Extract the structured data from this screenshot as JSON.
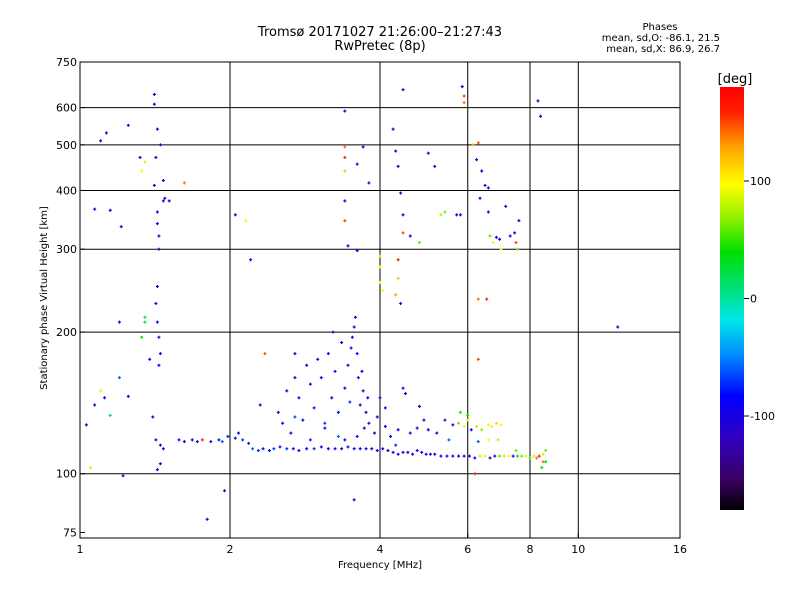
{
  "title": {
    "line1": "Tromsø 20171027 21:26:00–21:27:43",
    "line2": "RwPretec (8p)"
  },
  "phase_stats": {
    "heading": "Phases",
    "o_line": "mean, sd,O: -86.1, 21.5",
    "x_line": "mean, sd,X:  86.9, 26.7"
  },
  "colorbar": {
    "label": "[deg]",
    "range": [
      -180,
      180
    ],
    "ticks": [
      {
        "v": 100,
        "label": "100"
      },
      {
        "v": 0,
        "label": "0"
      },
      {
        "v": -100,
        "label": "-100"
      }
    ]
  },
  "chart_data": {
    "type": "scatter",
    "xlabel": "Frequency [MHz]",
    "ylabel": "Stationary phase Virtual Height [km]",
    "xscale": "log",
    "yscale": "log",
    "xlim": [
      1,
      16
    ],
    "ylim": [
      73,
      750
    ],
    "xticks": [
      {
        "v": 1,
        "label": "1"
      },
      {
        "v": 2,
        "label": "2"
      },
      {
        "v": 4,
        "label": "4"
      },
      {
        "v": 6,
        "label": "6"
      },
      {
        "v": 8,
        "label": "8"
      },
      {
        "v": 10,
        "label": "10"
      },
      {
        "v": 16,
        "label": "16"
      }
    ],
    "yticks": [
      {
        "v": 75,
        "label": "75"
      },
      {
        "v": 100,
        "label": "100"
      },
      {
        "v": 200,
        "label": "200"
      },
      {
        "v": 300,
        "label": "300"
      },
      {
        "v": 400,
        "label": "400"
      },
      {
        "v": 500,
        "label": "500"
      },
      {
        "v": 600,
        "label": "600"
      },
      {
        "v": 750,
        "label": "750"
      }
    ],
    "grid": true,
    "color_by": "phase_deg",
    "points": [
      [
        1.03,
        127,
        -95
      ],
      [
        1.05,
        103,
        110
      ],
      [
        1.07,
        140,
        -110
      ],
      [
        1.1,
        150,
        105
      ],
      [
        1.12,
        145,
        -100
      ],
      [
        1.15,
        133,
        20
      ],
      [
        1.2,
        160,
        -60
      ],
      [
        1.22,
        99,
        -110
      ],
      [
        1.25,
        146,
        -90
      ],
      [
        1.33,
        195,
        40
      ],
      [
        1.35,
        210,
        20
      ],
      [
        1.4,
        132,
        -90
      ],
      [
        1.42,
        118,
        -100
      ],
      [
        1.45,
        115,
        -95
      ],
      [
        1.43,
        102,
        -95
      ],
      [
        1.45,
        105,
        -90
      ],
      [
        1.47,
        113,
        -90
      ],
      [
        1.38,
        175,
        -80
      ],
      [
        1.07,
        365,
        -95
      ],
      [
        1.15,
        363,
        -95
      ],
      [
        1.21,
        335,
        -100
      ],
      [
        1.1,
        510,
        -95
      ],
      [
        1.13,
        530,
        -95
      ],
      [
        1.25,
        550,
        -95
      ],
      [
        1.32,
        470,
        -90
      ],
      [
        1.35,
        460,
        110
      ],
      [
        1.33,
        440,
        100
      ],
      [
        1.41,
        410,
        -95
      ],
      [
        1.43,
        360,
        -100
      ],
      [
        1.43,
        340,
        -95
      ],
      [
        1.44,
        320,
        -100
      ],
      [
        1.44,
        300,
        -100
      ],
      [
        1.43,
        250,
        -100
      ],
      [
        1.42,
        230,
        -95
      ],
      [
        1.43,
        210,
        -100
      ],
      [
        1.44,
        195,
        -100
      ],
      [
        1.45,
        180,
        -95
      ],
      [
        1.44,
        170,
        -90
      ],
      [
        1.47,
        380,
        -95
      ],
      [
        1.45,
        500,
        -95
      ],
      [
        1.42,
        470,
        -100
      ],
      [
        1.41,
        640,
        -95
      ],
      [
        1.41,
        610,
        -100
      ],
      [
        1.43,
        540,
        -95
      ],
      [
        1.47,
        420,
        -95
      ],
      [
        1.48,
        385,
        -100
      ],
      [
        1.51,
        380,
        -95
      ],
      [
        1.62,
        415,
        140
      ],
      [
        1.2,
        210,
        -100
      ],
      [
        1.35,
        215,
        20
      ],
      [
        1.58,
        118,
        -100
      ],
      [
        1.62,
        117,
        -95
      ],
      [
        1.68,
        118,
        -100
      ],
      [
        1.72,
        117,
        -95
      ],
      [
        1.76,
        118,
        160
      ],
      [
        1.83,
        117,
        -100
      ],
      [
        1.9,
        118,
        -90
      ],
      [
        1.93,
        117,
        -60
      ],
      [
        1.98,
        120,
        -75
      ],
      [
        2.05,
        119,
        -80
      ],
      [
        2.08,
        122,
        -95
      ],
      [
        2.12,
        118,
        -70
      ],
      [
        2.18,
        116,
        -75
      ],
      [
        2.22,
        113,
        -60
      ],
      [
        2.28,
        112,
        -70
      ],
      [
        2.33,
        113,
        -85
      ],
      [
        2.4,
        112,
        -90
      ],
      [
        2.45,
        113,
        -70
      ],
      [
        2.52,
        114,
        -95
      ],
      [
        2.6,
        113,
        -70
      ],
      [
        2.68,
        113,
        -80
      ],
      [
        2.75,
        112,
        -95
      ],
      [
        2.85,
        113,
        -90
      ],
      [
        2.95,
        113,
        -70
      ],
      [
        3.05,
        114,
        -95
      ],
      [
        3.15,
        113,
        -90
      ],
      [
        3.25,
        113,
        -80
      ],
      [
        3.35,
        113,
        -95
      ],
      [
        3.45,
        114,
        -100
      ],
      [
        3.55,
        113,
        -95
      ],
      [
        3.65,
        113,
        -90
      ],
      [
        3.75,
        113,
        -85
      ],
      [
        3.85,
        113,
        -100
      ],
      [
        3.95,
        112,
        -100
      ],
      [
        4.05,
        113,
        -95
      ],
      [
        4.15,
        112,
        -90
      ],
      [
        4.25,
        111,
        -100
      ],
      [
        4.35,
        110,
        -95
      ],
      [
        4.45,
        111,
        -95
      ],
      [
        4.55,
        111,
        -90
      ],
      [
        4.65,
        110,
        -100
      ],
      [
        4.75,
        112,
        -100
      ],
      [
        4.85,
        111,
        -95
      ],
      [
        4.95,
        110,
        -90
      ],
      [
        5.05,
        110,
        -100
      ],
      [
        5.15,
        110,
        -95
      ],
      [
        5.3,
        109,
        -100
      ],
      [
        5.45,
        109,
        -90
      ],
      [
        5.6,
        109,
        -95
      ],
      [
        5.75,
        109,
        -100
      ],
      [
        5.9,
        109,
        -95
      ],
      [
        6.05,
        109,
        -90
      ],
      [
        6.2,
        108,
        -85
      ],
      [
        6.35,
        109,
        80
      ],
      [
        6.5,
        109,
        90
      ],
      [
        6.65,
        108,
        -100
      ],
      [
        6.8,
        109,
        -95
      ],
      [
        6.95,
        109,
        60
      ],
      [
        7.1,
        109,
        80
      ],
      [
        7.25,
        109,
        100
      ],
      [
        7.4,
        109,
        -100
      ],
      [
        7.55,
        109,
        40
      ],
      [
        7.7,
        109,
        60
      ],
      [
        7.85,
        109,
        90
      ],
      [
        8.0,
        108,
        50
      ],
      [
        8.15,
        109,
        80
      ],
      [
        8.25,
        108,
        140
      ],
      [
        8.35,
        109,
        160
      ],
      [
        8.5,
        106,
        140
      ],
      [
        8.6,
        106,
        40
      ],
      [
        2.3,
        140,
        -100
      ],
      [
        2.5,
        135,
        -95
      ],
      [
        2.55,
        128,
        -80
      ],
      [
        2.6,
        150,
        -90
      ],
      [
        2.65,
        122,
        -100
      ],
      [
        2.7,
        160,
        -95
      ],
      [
        2.75,
        145,
        -85
      ],
      [
        2.8,
        130,
        -90
      ],
      [
        2.85,
        170,
        -100
      ],
      [
        2.9,
        155,
        -95
      ],
      [
        2.95,
        138,
        -80
      ],
      [
        3.0,
        175,
        -110
      ],
      [
        3.05,
        160,
        -100
      ],
      [
        3.1,
        125,
        -95
      ],
      [
        3.15,
        180,
        -90
      ],
      [
        3.2,
        145,
        -100
      ],
      [
        3.22,
        200,
        -100
      ],
      [
        3.25,
        165,
        -80
      ],
      [
        3.3,
        135,
        -95
      ],
      [
        3.35,
        190,
        -100
      ],
      [
        3.4,
        152,
        -90
      ],
      [
        3.45,
        170,
        -100
      ],
      [
        3.48,
        142,
        -70
      ],
      [
        3.5,
        185,
        -100
      ],
      [
        3.52,
        195,
        -95
      ],
      [
        3.55,
        205,
        -100
      ],
      [
        3.57,
        215,
        -95
      ],
      [
        3.6,
        180,
        -90
      ],
      [
        3.62,
        160,
        -80
      ],
      [
        3.65,
        140,
        -95
      ],
      [
        3.68,
        165,
        -90
      ],
      [
        3.7,
        150,
        -100
      ],
      [
        3.72,
        125,
        -85
      ],
      [
        3.75,
        135,
        -95
      ],
      [
        3.78,
        145,
        -90
      ],
      [
        3.3,
        120,
        -60
      ],
      [
        3.1,
        128,
        -70
      ],
      [
        2.9,
        118,
        -75
      ],
      [
        2.7,
        132,
        -65
      ],
      [
        3.4,
        118,
        -80
      ],
      [
        3.6,
        120,
        -95
      ],
      [
        3.8,
        128,
        -100
      ],
      [
        3.9,
        122,
        -90
      ],
      [
        4.1,
        126,
        -85
      ],
      [
        4.2,
        120,
        -95
      ],
      [
        4.35,
        124,
        -100
      ],
      [
        4.45,
        152,
        -100
      ],
      [
        4.5,
        148,
        -95
      ],
      [
        4.3,
        115,
        -70
      ],
      [
        4.6,
        122,
        -80
      ],
      [
        4.75,
        125,
        -95
      ],
      [
        4.9,
        130,
        -100
      ],
      [
        5.0,
        124,
        -90
      ],
      [
        5.2,
        122,
        -95
      ],
      [
        5.4,
        130,
        -80
      ],
      [
        5.5,
        118,
        -60
      ],
      [
        5.6,
        127,
        -95
      ],
      [
        5.75,
        128,
        60
      ],
      [
        5.9,
        126,
        100
      ],
      [
        6.0,
        130,
        90
      ],
      [
        6.1,
        124,
        -90
      ],
      [
        6.25,
        126,
        80
      ],
      [
        6.4,
        124,
        70
      ],
      [
        6.6,
        127,
        100
      ],
      [
        6.7,
        126,
        90
      ],
      [
        6.85,
        128,
        110
      ],
      [
        7.0,
        127,
        100
      ],
      [
        6.9,
        118,
        80
      ],
      [
        6.6,
        118,
        100
      ],
      [
        6.3,
        117,
        -60
      ],
      [
        6.0,
        133,
        40
      ],
      [
        5.8,
        135,
        30
      ],
      [
        4.8,
        139,
        -95
      ],
      [
        4.1,
        138,
        -90
      ],
      [
        4.0,
        145,
        -100
      ],
      [
        3.95,
        132,
        -95
      ],
      [
        3.4,
        590,
        -95
      ],
      [
        3.4,
        495,
        140
      ],
      [
        3.4,
        470,
        160
      ],
      [
        3.4,
        440,
        120
      ],
      [
        3.4,
        380,
        -100
      ],
      [
        3.4,
        345,
        150
      ],
      [
        3.6,
        455,
        -95
      ],
      [
        3.7,
        495,
        -90
      ],
      [
        3.8,
        415,
        -100
      ],
      [
        3.45,
        305,
        -95
      ],
      [
        3.6,
        298,
        -90
      ],
      [
        3.55,
        88,
        -95
      ],
      [
        4.0,
        290,
        110
      ],
      [
        4.0,
        275,
        100
      ],
      [
        4.0,
        255,
        90
      ],
      [
        4.05,
        245,
        100
      ],
      [
        4.25,
        540,
        -95
      ],
      [
        4.3,
        485,
        -100
      ],
      [
        4.35,
        450,
        -90
      ],
      [
        4.4,
        395,
        -95
      ],
      [
        4.45,
        355,
        -100
      ],
      [
        4.45,
        325,
        150
      ],
      [
        4.35,
        285,
        160
      ],
      [
        4.35,
        260,
        120
      ],
      [
        4.3,
        240,
        130
      ],
      [
        4.4,
        230,
        -90
      ],
      [
        4.45,
        655,
        -95
      ],
      [
        4.6,
        320,
        -90
      ],
      [
        4.8,
        310,
        60
      ],
      [
        5.0,
        480,
        -100
      ],
      [
        5.15,
        450,
        -95
      ],
      [
        5.3,
        355,
        80
      ],
      [
        5.4,
        360,
        60
      ],
      [
        5.7,
        355,
        -100
      ],
      [
        5.8,
        355,
        -95
      ],
      [
        5.85,
        665,
        -95
      ],
      [
        5.9,
        635,
        150
      ],
      [
        5.9,
        615,
        140
      ],
      [
        6.15,
        500,
        130
      ],
      [
        6.3,
        505,
        150
      ],
      [
        6.25,
        465,
        -95
      ],
      [
        6.4,
        440,
        -90
      ],
      [
        6.5,
        410,
        -100
      ],
      [
        6.6,
        405,
        -95
      ],
      [
        6.35,
        385,
        -90
      ],
      [
        6.6,
        360,
        -95
      ],
      [
        6.65,
        320,
        60
      ],
      [
        6.75,
        310,
        100
      ],
      [
        6.85,
        318,
        -95
      ],
      [
        6.95,
        315,
        -100
      ],
      [
        7.0,
        300,
        100
      ],
      [
        7.15,
        370,
        -95
      ],
      [
        7.3,
        320,
        -100
      ],
      [
        7.45,
        325,
        -95
      ],
      [
        7.5,
        310,
        150
      ],
      [
        7.55,
        300,
        60
      ],
      [
        7.6,
        345,
        -95
      ],
      [
        6.3,
        235,
        140
      ],
      [
        6.3,
        175,
        150
      ],
      [
        8.3,
        620,
        -95
      ],
      [
        8.4,
        575,
        -95
      ],
      [
        8.45,
        103,
        30
      ],
      [
        8.5,
        110,
        80
      ],
      [
        8.6,
        112,
        60
      ],
      [
        7.5,
        112,
        60
      ],
      [
        12.0,
        205,
        -95
      ],
      [
        2.05,
        355,
        -95
      ],
      [
        2.15,
        345,
        100
      ],
      [
        2.2,
        285,
        -95
      ],
      [
        2.35,
        180,
        150
      ],
      [
        2.7,
        180,
        -100
      ],
      [
        1.95,
        92,
        -100
      ],
      [
        1.8,
        80,
        -100
      ],
      [
        6.2,
        100,
        160
      ],
      [
        6.55,
        235,
        160
      ]
    ]
  }
}
